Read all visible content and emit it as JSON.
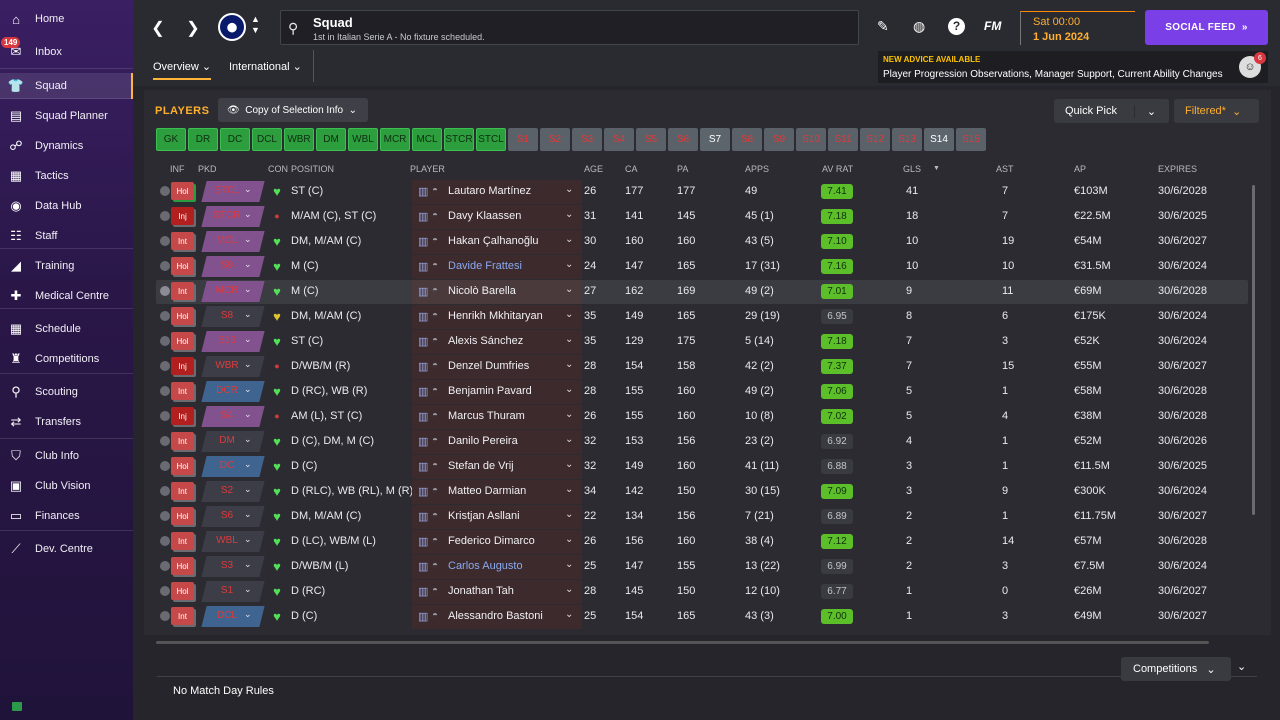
{
  "sidebar": {
    "items": [
      {
        "label": "Home",
        "icon": "home-icon",
        "glyph": "⌂"
      },
      {
        "label": "Inbox",
        "icon": "inbox-icon",
        "glyph": "✉",
        "badge": "149"
      },
      {
        "label": "Squad",
        "icon": "squad-icon",
        "glyph": "👕",
        "active": true
      },
      {
        "label": "Squad Planner",
        "icon": "squad-planner-icon",
        "glyph": "▤"
      },
      {
        "label": "Dynamics",
        "icon": "dynamics-icon",
        "glyph": "☍"
      },
      {
        "label": "Tactics",
        "icon": "tactics-icon",
        "glyph": "▦"
      },
      {
        "label": "Data Hub",
        "icon": "data-hub-icon",
        "glyph": "◉"
      },
      {
        "label": "Staff",
        "icon": "staff-icon",
        "glyph": "☷"
      },
      {
        "label": "Training",
        "icon": "training-icon",
        "glyph": "◢"
      },
      {
        "label": "Medical Centre",
        "icon": "medical-icon",
        "glyph": "✚"
      },
      {
        "label": "Schedule",
        "icon": "schedule-icon",
        "glyph": "▦"
      },
      {
        "label": "Competitions",
        "icon": "trophy-icon",
        "glyph": "♜"
      },
      {
        "label": "Scouting",
        "icon": "scouting-icon",
        "glyph": "⚲"
      },
      {
        "label": "Transfers",
        "icon": "transfers-icon",
        "glyph": "⇄"
      },
      {
        "label": "Club Info",
        "icon": "club-info-icon",
        "glyph": "⛉"
      },
      {
        "label": "Club Vision",
        "icon": "club-vision-icon",
        "glyph": "▣"
      },
      {
        "label": "Finances",
        "icon": "finances-icon",
        "glyph": "▭"
      },
      {
        "label": "Dev. Centre",
        "icon": "dev-centre-icon",
        "glyph": "⟋"
      }
    ]
  },
  "header": {
    "search_title": "Squad",
    "search_subtitle": "1st in Italian Serie A - No fixture scheduled.",
    "fm_logo": "FM",
    "date_day": "Sat 00:00",
    "date_date": "1 Jun 2024",
    "social_feed": "SOCIAL FEED",
    "advice_heading": "NEW ADVICE AVAILABLE",
    "advice_text": "Player Progression Observations, Manager Support, Current Ability Changes",
    "advice_count": "6",
    "tabs": [
      "Overview",
      "International"
    ]
  },
  "panel": {
    "title": "PLAYERS",
    "copy_label": "Copy of Selection Info",
    "quick_pick": "Quick Pick",
    "filtered": "Filtered*"
  },
  "position_filters": [
    {
      "label": "GK",
      "state": "on"
    },
    {
      "label": "DR",
      "state": "on"
    },
    {
      "label": "DC",
      "state": "on"
    },
    {
      "label": "DCL",
      "state": "on"
    },
    {
      "label": "WBR",
      "state": "on"
    },
    {
      "label": "DM",
      "state": "on"
    },
    {
      "label": "WBL",
      "state": "on"
    },
    {
      "label": "MCR",
      "state": "on"
    },
    {
      "label": "MCL",
      "state": "on"
    },
    {
      "label": "STCR",
      "state": "on"
    },
    {
      "label": "STCL",
      "state": "on"
    },
    {
      "label": "S1",
      "state": "off"
    },
    {
      "label": "S2",
      "state": "off"
    },
    {
      "label": "S3",
      "state": "off"
    },
    {
      "label": "S4",
      "state": "off"
    },
    {
      "label": "S5",
      "state": "off"
    },
    {
      "label": "S6",
      "state": "off"
    },
    {
      "label": "S7",
      "state": "s7"
    },
    {
      "label": "S8",
      "state": "off"
    },
    {
      "label": "S9",
      "state": "off"
    },
    {
      "label": "S10",
      "state": "off"
    },
    {
      "label": "S11",
      "state": "off"
    },
    {
      "label": "S12",
      "state": "off"
    },
    {
      "label": "S13",
      "state": "off"
    },
    {
      "label": "S14",
      "state": "s7"
    },
    {
      "label": "S15",
      "state": "off"
    }
  ],
  "columns": [
    "INF",
    "PKD",
    "CON",
    "POSITION",
    "PLAYER",
    "AGE",
    "CA",
    "PA",
    "APPS",
    "AV RAT",
    "GLS",
    "AST",
    "AP",
    "EXPIRES"
  ],
  "players": [
    {
      "inf": "Hol",
      "pkd": "STCL",
      "pkd_color": "pink",
      "con": "g",
      "position": "ST (C)",
      "name": "Lautaro Martínez",
      "age": "26",
      "ca": "177",
      "pa": "177",
      "apps": "49",
      "rat": "7.41",
      "rat_style": "g",
      "gls": "41",
      "ast": "7",
      "ap": "€103M",
      "expires": "30/6/2028"
    },
    {
      "inf": "Inj",
      "pkd": "STCR",
      "pkd_color": "pink",
      "con": "r",
      "position": "M/AM (C), ST (C)",
      "name": "Davy Klaassen",
      "age": "31",
      "ca": "141",
      "pa": "145",
      "apps": "45 (1)",
      "rat": "7.18",
      "rat_style": "g",
      "gls": "18",
      "ast": "7",
      "ap": "€22.5M",
      "expires": "30/6/2025"
    },
    {
      "inf": "Int",
      "pkd": "MCL",
      "pkd_color": "pink",
      "con": "g",
      "position": "DM, M/AM (C)",
      "name": "Hakan Çalhanoğlu",
      "age": "30",
      "ca": "160",
      "pa": "160",
      "apps": "43 (5)",
      "rat": "7.10",
      "rat_style": "g",
      "gls": "10",
      "ast": "19",
      "ap": "€54M",
      "expires": "30/6/2027"
    },
    {
      "inf": "Hol",
      "pkd": "S9",
      "pkd_color": "pink",
      "con": "g",
      "position": "M (C)",
      "name": "Davide Frattesi",
      "name_blue": true,
      "age": "24",
      "ca": "147",
      "pa": "165",
      "apps": "17 (31)",
      "rat": "7.16",
      "rat_style": "g",
      "gls": "10",
      "ast": "10",
      "ap": "€31.5M",
      "expires": "30/6/2024"
    },
    {
      "inf": "Int",
      "pkd": "MCR",
      "pkd_color": "pink",
      "con": "g",
      "position": "M (C)",
      "name": "Nicolò Barella",
      "age": "27",
      "ca": "162",
      "pa": "169",
      "apps": "49 (2)",
      "rat": "7.01",
      "rat_style": "g",
      "gls": "9",
      "ast": "11",
      "ap": "€69M",
      "expires": "30/6/2028",
      "highlight": true
    },
    {
      "inf": "Hol",
      "pkd": "S8",
      "pkd_color": "grey",
      "con": "y",
      "position": "DM, M/AM (C)",
      "name": "Henrikh Mkhitaryan",
      "age": "35",
      "ca": "149",
      "pa": "165",
      "apps": "29 (19)",
      "rat": "6.95",
      "rat_style": "n",
      "gls": "8",
      "ast": "6",
      "ap": "€175K",
      "expires": "30/6/2024"
    },
    {
      "inf": "Hol",
      "pkd": "S10",
      "pkd_color": "pink",
      "con": "g",
      "position": "ST (C)",
      "name": "Alexis Sánchez",
      "age": "35",
      "ca": "129",
      "pa": "175",
      "apps": "5 (14)",
      "rat": "7.18",
      "rat_style": "g",
      "gls": "7",
      "ast": "3",
      "ap": "€52K",
      "expires": "30/6/2024"
    },
    {
      "inf": "Inj",
      "pkd": "WBR",
      "pkd_color": "grey",
      "con": "r",
      "position": "D/WB/M (R)",
      "name": "Denzel Dumfries",
      "age": "28",
      "ca": "154",
      "pa": "158",
      "apps": "42 (2)",
      "rat": "7.37",
      "rat_style": "g",
      "gls": "7",
      "ast": "15",
      "ap": "€55M",
      "expires": "30/6/2027"
    },
    {
      "inf": "Int",
      "pkd": "DCR",
      "pkd_color": "blue",
      "con": "g",
      "position": "D (RC), WB (R)",
      "name": "Benjamin Pavard",
      "age": "28",
      "ca": "155",
      "pa": "160",
      "apps": "49 (2)",
      "rat": "7.06",
      "rat_style": "g",
      "gls": "5",
      "ast": "1",
      "ap": "€58M",
      "expires": "30/6/2028"
    },
    {
      "inf": "Inj",
      "pkd": "S4",
      "pkd_color": "pink",
      "con": "r",
      "position": "AM (L), ST (C)",
      "name": "Marcus Thuram",
      "age": "26",
      "ca": "155",
      "pa": "160",
      "apps": "10 (8)",
      "rat": "7.02",
      "rat_style": "g",
      "gls": "5",
      "ast": "4",
      "ap": "€38M",
      "expires": "30/6/2028"
    },
    {
      "inf": "Int",
      "pkd": "DM",
      "pkd_color": "grey",
      "con": "g",
      "position": "D (C), DM, M (C)",
      "name": "Danilo Pereira",
      "age": "32",
      "ca": "153",
      "pa": "156",
      "apps": "23 (2)",
      "rat": "6.92",
      "rat_style": "n",
      "gls": "4",
      "ast": "1",
      "ap": "€52M",
      "expires": "30/6/2026"
    },
    {
      "inf": "Hol",
      "pkd": "DC",
      "pkd_color": "blue",
      "con": "g",
      "position": "D (C)",
      "name": "Stefan de Vrij",
      "age": "32",
      "ca": "149",
      "pa": "160",
      "apps": "41 (11)",
      "rat": "6.88",
      "rat_style": "n",
      "gls": "3",
      "ast": "1",
      "ap": "€11.5M",
      "expires": "30/6/2025"
    },
    {
      "inf": "Int",
      "pkd": "S2",
      "pkd_color": "grey",
      "con": "g",
      "position": "D (RLC), WB (RL), M (R)",
      "name": "Matteo Darmian",
      "age": "34",
      "ca": "142",
      "pa": "150",
      "apps": "30 (15)",
      "rat": "7.09",
      "rat_style": "g",
      "gls": "3",
      "ast": "9",
      "ap": "€300K",
      "expires": "30/6/2024"
    },
    {
      "inf": "Hol",
      "pkd": "S6",
      "pkd_color": "grey",
      "con": "g",
      "position": "DM, M/AM (C)",
      "name": "Kristjan Asllani",
      "age": "22",
      "ca": "134",
      "pa": "156",
      "apps": "7 (21)",
      "rat": "6.89",
      "rat_style": "n",
      "gls": "2",
      "ast": "1",
      "ap": "€11.75M",
      "expires": "30/6/2027"
    },
    {
      "inf": "Int",
      "pkd": "WBL",
      "pkd_color": "grey",
      "con": "g",
      "position": "D (LC), WB/M (L)",
      "name": "Federico Dimarco",
      "age": "26",
      "ca": "156",
      "pa": "160",
      "apps": "38 (4)",
      "rat": "7.12",
      "rat_style": "g",
      "gls": "2",
      "ast": "14",
      "ap": "€57M",
      "expires": "30/6/2028"
    },
    {
      "inf": "Hol",
      "pkd": "S3",
      "pkd_color": "grey",
      "con": "g",
      "position": "D/WB/M (L)",
      "name": "Carlos Augusto",
      "name_blue": true,
      "age": "25",
      "ca": "147",
      "pa": "155",
      "apps": "13 (22)",
      "rat": "6.99",
      "rat_style": "n",
      "gls": "2",
      "ast": "3",
      "ap": "€7.5M",
      "expires": "30/6/2024"
    },
    {
      "inf": "Hol",
      "pkd": "S1",
      "pkd_color": "grey",
      "con": "g",
      "position": "D (RC)",
      "name": "Jonathan Tah",
      "age": "28",
      "ca": "145",
      "pa": "150",
      "apps": "12 (10)",
      "rat": "6.77",
      "rat_style": "n",
      "gls": "1",
      "ast": "0",
      "ap": "€26M",
      "expires": "30/6/2027"
    },
    {
      "inf": "Int",
      "pkd": "DCL",
      "pkd_color": "blue",
      "con": "g",
      "position": "D (C)",
      "name": "Alessandro Bastoni",
      "age": "25",
      "ca": "154",
      "pa": "165",
      "apps": "43 (3)",
      "rat": "7.00",
      "rat_style": "g",
      "gls": "1",
      "ast": "3",
      "ap": "€49M",
      "expires": "30/6/2027"
    }
  ],
  "bottom": {
    "competitions": "Competitions",
    "no_match_rules": "No Match Day Rules"
  }
}
